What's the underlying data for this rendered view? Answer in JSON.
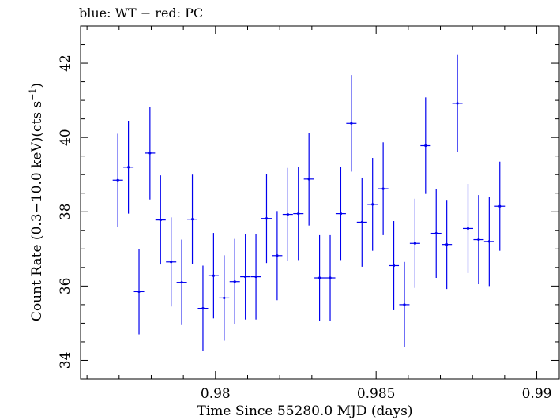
{
  "chart_data": {
    "type": "scatter",
    "title": "blue: WT − red: PC",
    "xlabel": "Time Since 55280.0 MJD (days)",
    "ylabel_main": "Count Rate (0.3−10.0 keV)(cts s",
    "ylabel_sup": "−1",
    "ylabel_close": ")",
    "xlim": [
      0.9758,
      0.9907
    ],
    "ylim": [
      33.5,
      43.0
    ],
    "x_ticks": [
      0.98,
      0.985,
      0.99
    ],
    "x_tick_labels": [
      "0.98",
      "0.985",
      "0.99"
    ],
    "y_ticks": [
      34,
      36,
      38,
      40,
      42
    ],
    "y_tick_labels": [
      "34",
      "36",
      "38",
      "40",
      "42"
    ],
    "colors": {
      "series": "#0000ee",
      "axis": "#000000"
    },
    "series": [
      {
        "points": [
          {
            "x": 0.97696,
            "xerr": 0.00016,
            "y": 38.85,
            "yerr": 1.25
          },
          {
            "x": 0.97729,
            "xerr": 0.00016,
            "y": 39.2,
            "yerr": 1.25
          },
          {
            "x": 0.97762,
            "xerr": 0.00016,
            "y": 35.85,
            "yerr": 1.15
          },
          {
            "x": 0.97796,
            "xerr": 0.00016,
            "y": 39.58,
            "yerr": 1.25
          },
          {
            "x": 0.97829,
            "xerr": 0.00016,
            "y": 37.78,
            "yerr": 1.2
          },
          {
            "x": 0.97862,
            "xerr": 0.00016,
            "y": 36.65,
            "yerr": 1.2
          },
          {
            "x": 0.97895,
            "xerr": 0.00016,
            "y": 36.1,
            "yerr": 1.15
          },
          {
            "x": 0.97928,
            "xerr": 0.00016,
            "y": 37.8,
            "yerr": 1.2
          },
          {
            "x": 0.97961,
            "xerr": 0.00016,
            "y": 35.4,
            "yerr": 1.15
          },
          {
            "x": 0.97994,
            "xerr": 0.00016,
            "y": 36.28,
            "yerr": 1.15
          },
          {
            "x": 0.98027,
            "xerr": 0.00016,
            "y": 35.68,
            "yerr": 1.15
          },
          {
            "x": 0.9806,
            "xerr": 0.00016,
            "y": 36.12,
            "yerr": 1.15
          },
          {
            "x": 0.98093,
            "xerr": 0.00016,
            "y": 36.25,
            "yerr": 1.15
          },
          {
            "x": 0.98126,
            "xerr": 0.00016,
            "y": 36.25,
            "yerr": 1.15
          },
          {
            "x": 0.98159,
            "xerr": 0.00016,
            "y": 37.82,
            "yerr": 1.2
          },
          {
            "x": 0.98192,
            "xerr": 0.00016,
            "y": 36.82,
            "yerr": 1.2
          },
          {
            "x": 0.98225,
            "xerr": 0.00016,
            "y": 37.93,
            "yerr": 1.25
          },
          {
            "x": 0.98258,
            "xerr": 0.00016,
            "y": 37.95,
            "yerr": 1.25
          },
          {
            "x": 0.98291,
            "xerr": 0.00016,
            "y": 38.88,
            "yerr": 1.25
          },
          {
            "x": 0.98324,
            "xerr": 0.00016,
            "y": 36.22,
            "yerr": 1.15
          },
          {
            "x": 0.98357,
            "xerr": 0.00016,
            "y": 36.22,
            "yerr": 1.15
          },
          {
            "x": 0.9839,
            "xerr": 0.00016,
            "y": 37.95,
            "yerr": 1.25
          },
          {
            "x": 0.98423,
            "xerr": 0.00016,
            "y": 40.38,
            "yerr": 1.3
          },
          {
            "x": 0.98456,
            "xerr": 0.00016,
            "y": 37.72,
            "yerr": 1.2
          },
          {
            "x": 0.98489,
            "xerr": 0.00016,
            "y": 38.2,
            "yerr": 1.25
          },
          {
            "x": 0.98522,
            "xerr": 0.00016,
            "y": 38.62,
            "yerr": 1.25
          },
          {
            "x": 0.98555,
            "xerr": 0.00016,
            "y": 36.55,
            "yerr": 1.2
          },
          {
            "x": 0.98588,
            "xerr": 0.00016,
            "y": 35.5,
            "yerr": 1.15
          },
          {
            "x": 0.98621,
            "xerr": 0.00016,
            "y": 37.15,
            "yerr": 1.2
          },
          {
            "x": 0.98654,
            "xerr": 0.00016,
            "y": 39.78,
            "yerr": 1.3
          },
          {
            "x": 0.98687,
            "xerr": 0.00016,
            "y": 37.42,
            "yerr": 1.2
          },
          {
            "x": 0.9872,
            "xerr": 0.00016,
            "y": 37.12,
            "yerr": 1.2
          },
          {
            "x": 0.98753,
            "xerr": 0.00016,
            "y": 40.92,
            "yerr": 1.3
          },
          {
            "x": 0.98786,
            "xerr": 0.00016,
            "y": 37.55,
            "yerr": 1.2
          },
          {
            "x": 0.98819,
            "xerr": 0.00016,
            "y": 37.25,
            "yerr": 1.2
          },
          {
            "x": 0.98852,
            "xerr": 0.00016,
            "y": 37.2,
            "yerr": 1.2
          },
          {
            "x": 0.98885,
            "xerr": 0.00016,
            "y": 38.15,
            "yerr": 1.2
          }
        ]
      }
    ]
  }
}
